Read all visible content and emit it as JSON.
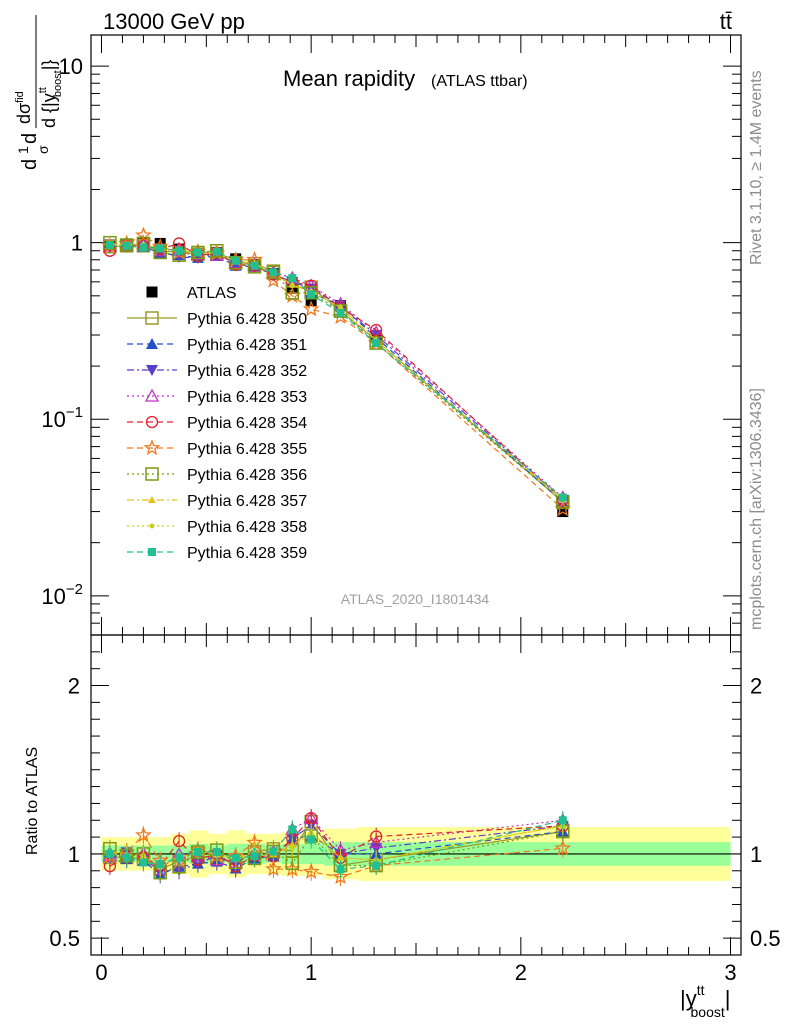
{
  "header": {
    "energy_label": "13000 GeV pp",
    "process_label": "tt̄"
  },
  "side_labels": {
    "rivet": "Rivet 3.1.10, ≥ 1.4M events",
    "mcplots": "mcplots.cern.ch [arXiv:1306.3436]"
  },
  "watermark": "ATLAS_2020_I1801434",
  "chart_data": [
    {
      "type": "scatter",
      "title": "Mean rapidity",
      "subtitle": "(ATLAS ttbar)",
      "ylabel_parts": {
        "d1": "d",
        "one": "1",
        "sigma": "σ",
        "d2": "d",
        "dsig": "dσ",
        "fid": "fid",
        "dy": "d {|y",
        "sup": "tt",
        "sub": "boost",
        "close": "|}"
      },
      "yscale": "log",
      "ylim": [
        0.006,
        15
      ],
      "yticks": [
        {
          "value": 10,
          "base": "10",
          "exp": ""
        },
        {
          "value": 1,
          "base": "1",
          "exp": ""
        },
        {
          "value": 0.1,
          "base": "10",
          "exp": "−1"
        },
        {
          "value": 0.01,
          "base": "10",
          "exp": "−2"
        }
      ],
      "xlim": [
        -0.05,
        3.05
      ],
      "x": [
        0.04,
        0.12,
        0.2,
        0.28,
        0.37,
        0.46,
        0.55,
        0.64,
        0.73,
        0.82,
        0.91,
        1.0,
        1.14,
        1.31,
        2.2
      ],
      "series": [
        {
          "name": "ATLAS",
          "color": "#000000",
          "marker": "square-filled",
          "dash": "none",
          "values": [
            0.97,
            0.98,
            0.99,
            0.99,
            0.92,
            0.87,
            0.88,
            0.81,
            0.75,
            0.67,
            0.55,
            0.47,
            0.44,
            0.29,
            0.03
          ]
        },
        {
          "name": "Pythia 6.428 350",
          "color": "#9a9a2a",
          "marker": "square-open",
          "dash": "solid",
          "values": [
            0.95,
            0.96,
            0.96,
            0.9,
            0.88,
            0.86,
            0.86,
            0.77,
            0.76,
            0.69,
            0.56,
            0.56,
            0.41,
            0.28,
            0.034
          ]
        },
        {
          "name": "Pythia 6.428 351",
          "color": "#2050c8",
          "marker": "triangle-up-filled",
          "dash": "dashed",
          "values": [
            0.98,
            0.95,
            0.95,
            0.87,
            0.85,
            0.82,
            0.84,
            0.74,
            0.73,
            0.66,
            0.6,
            0.52,
            0.44,
            0.29,
            0.034
          ]
        },
        {
          "name": "Pythia 6.428 352",
          "color": "#5a3ec8",
          "marker": "triangle-down-filled",
          "dash": "dashdot",
          "values": [
            0.94,
            0.99,
            0.96,
            0.89,
            0.83,
            0.82,
            0.87,
            0.76,
            0.73,
            0.66,
            0.6,
            0.55,
            0.44,
            0.3,
            0.035
          ]
        },
        {
          "name": "Pythia 6.428 353",
          "color": "#c030c0",
          "marker": "triangle-up-open",
          "dash": "dotted",
          "values": [
            0.96,
            0.97,
            0.99,
            0.9,
            0.92,
            0.86,
            0.85,
            0.77,
            0.75,
            0.68,
            0.63,
            0.57,
            0.45,
            0.31,
            0.036
          ]
        },
        {
          "name": "Pythia 6.428 354",
          "color": "#e0202a",
          "marker": "circle-open",
          "dash": "dashed",
          "values": [
            0.9,
            0.96,
            0.97,
            0.92,
            0.99,
            0.84,
            0.88,
            0.75,
            0.74,
            0.66,
            0.6,
            0.57,
            0.43,
            0.32,
            0.035
          ]
        },
        {
          "name": "Pythia 6.428 355",
          "color": "#f07820",
          "marker": "star-open",
          "dash": "dashed",
          "values": [
            0.96,
            0.99,
            1.1,
            0.95,
            0.88,
            0.89,
            0.87,
            0.8,
            0.8,
            0.61,
            0.5,
            0.42,
            0.38,
            0.27,
            0.031
          ]
        },
        {
          "name": "Pythia 6.428 356",
          "color": "#7a9a10",
          "marker": "square-open",
          "dash": "dotted",
          "values": [
            1.0,
            0.97,
            0.99,
            0.88,
            0.85,
            0.88,
            0.9,
            0.77,
            0.73,
            0.68,
            0.52,
            0.52,
            0.41,
            0.27,
            0.034
          ]
        },
        {
          "name": "Pythia 6.428 357",
          "color": "#e8c020",
          "marker": "tri-small",
          "dash": "dashdot",
          "values": [
            0.98,
            0.98,
            0.98,
            0.92,
            0.9,
            0.88,
            0.88,
            0.79,
            0.76,
            0.67,
            0.58,
            0.53,
            0.43,
            0.28,
            0.035
          ]
        },
        {
          "name": "Pythia 6.428 358",
          "color": "#c8d020",
          "marker": "dot-small",
          "dash": "dotted",
          "values": [
            0.97,
            0.97,
            0.98,
            0.91,
            0.91,
            0.87,
            0.87,
            0.78,
            0.75,
            0.67,
            0.57,
            0.53,
            0.43,
            0.28,
            0.035
          ]
        },
        {
          "name": "Pythia 6.428 359",
          "color": "#20c090",
          "marker": "square-small",
          "dash": "dashed",
          "values": [
            0.97,
            0.96,
            0.94,
            0.93,
            0.9,
            0.88,
            0.89,
            0.79,
            0.74,
            0.68,
            0.63,
            0.51,
            0.4,
            0.27,
            0.036
          ]
        }
      ],
      "legend_placement": "middle-left"
    },
    {
      "type": "scatter",
      "ylabel": "Ratio to ATLAS",
      "xlabel_parts": {
        "open": "|y",
        "sup": "tt",
        "sub": "boost",
        "close": "|"
      },
      "ylim": [
        0.4,
        2.3
      ],
      "yticks": [
        0.5,
        1,
        2
      ],
      "xlim": [
        -0.05,
        3.05
      ],
      "xticks": [
        0,
        1,
        2,
        3
      ],
      "reference_line": 1,
      "bands": [
        {
          "x": [
            0.0,
            0.08,
            0.16,
            0.24,
            0.33,
            0.42,
            0.51,
            0.6,
            0.69,
            0.78,
            0.86,
            0.95,
            1.06,
            1.22,
            1.4,
            3.0
          ],
          "inner": [
            0.05,
            0.05,
            0.05,
            0.05,
            0.05,
            0.06,
            0.05,
            0.06,
            0.06,
            0.05,
            0.06,
            0.06,
            0.07,
            0.07,
            0.07
          ],
          "outer": [
            0.1,
            0.1,
            0.1,
            0.1,
            0.12,
            0.14,
            0.12,
            0.14,
            0.12,
            0.12,
            0.13,
            0.13,
            0.15,
            0.16,
            0.16
          ],
          "inner_color": "#99ff99",
          "outer_color": "#ffff99"
        }
      ]
    }
  ]
}
